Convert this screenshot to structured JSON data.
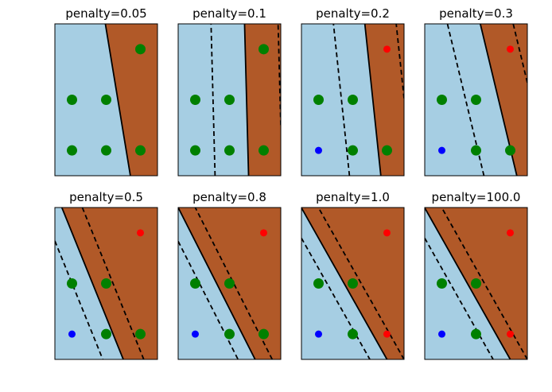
{
  "figure": {
    "background": "#ffffff"
  },
  "colors": {
    "class_0_region": "#a6cee3",
    "class_1_region": "#b15928",
    "boundary": "#000000",
    "support_vector": "#008000",
    "class_0_point": "#0000ff",
    "class_1_point": "#ff0000"
  },
  "chart_data": [
    {
      "type": "scatter",
      "title": "penalty=0.05",
      "xlim": [
        0,
        3
      ],
      "ylim": [
        0,
        3
      ],
      "grid": false,
      "ticks": false,
      "decision_boundary": {
        "normal": [
          0.41,
          0.1
        ],
        "offset": -0.905,
        "margin": 1.0
      },
      "points": [
        {
          "x": 0.5,
          "y": 0.5,
          "label": 0,
          "support_vector": true
        },
        {
          "x": 0.5,
          "y": 1.5,
          "label": 0,
          "support_vector": true
        },
        {
          "x": 1.5,
          "y": 0.5,
          "label": 0,
          "support_vector": true
        },
        {
          "x": 1.5,
          "y": 1.5,
          "label": 0,
          "support_vector": true
        },
        {
          "x": 2.5,
          "y": 0.5,
          "label": 1,
          "support_vector": true
        },
        {
          "x": 2.5,
          "y": 2.5,
          "label": 1,
          "support_vector": true
        }
      ]
    },
    {
      "type": "scatter",
      "title": "penalty=0.1",
      "xlim": [
        0,
        3
      ],
      "ylim": [
        0,
        3
      ],
      "grid": false,
      "ticks": false,
      "decision_boundary": {
        "normal": [
          1.02,
          0.04
        ],
        "offset": -2.1,
        "margin": 1.0
      },
      "points": [
        {
          "x": 0.5,
          "y": 0.5,
          "label": 0,
          "support_vector": true
        },
        {
          "x": 0.5,
          "y": 1.5,
          "label": 0,
          "support_vector": true
        },
        {
          "x": 1.5,
          "y": 0.5,
          "label": 0,
          "support_vector": true
        },
        {
          "x": 1.5,
          "y": 1.5,
          "label": 0,
          "support_vector": true
        },
        {
          "x": 2.5,
          "y": 0.5,
          "label": 1,
          "support_vector": true
        },
        {
          "x": 2.5,
          "y": 2.5,
          "label": 1,
          "support_vector": true
        }
      ]
    },
    {
      "type": "scatter",
      "title": "penalty=0.2",
      "xlim": [
        0,
        3
      ],
      "ylim": [
        0,
        3
      ],
      "grid": false,
      "ticks": false,
      "decision_boundary": {
        "normal": [
          1.09,
          0.17
        ],
        "offset": -2.53,
        "margin": 1.0
      },
      "points": [
        {
          "x": 0.5,
          "y": 0.5,
          "label": 0,
          "support_vector": false
        },
        {
          "x": 0.5,
          "y": 1.5,
          "label": 0,
          "support_vector": true
        },
        {
          "x": 1.5,
          "y": 0.5,
          "label": 0,
          "support_vector": true
        },
        {
          "x": 1.5,
          "y": 1.5,
          "label": 0,
          "support_vector": true
        },
        {
          "x": 2.5,
          "y": 0.5,
          "label": 1,
          "support_vector": true
        },
        {
          "x": 2.5,
          "y": 2.5,
          "label": 1,
          "support_vector": false
        }
      ]
    },
    {
      "type": "scatter",
      "title": "penalty=0.3",
      "xlim": [
        0,
        3
      ],
      "ylim": [
        0,
        3
      ],
      "grid": false,
      "ticks": false,
      "decision_boundary": {
        "normal": [
          1.04,
          0.37
        ],
        "offset": -2.8,
        "margin": 1.0
      },
      "points": [
        {
          "x": 0.5,
          "y": 0.5,
          "label": 0,
          "support_vector": false
        },
        {
          "x": 0.5,
          "y": 1.5,
          "label": 0,
          "support_vector": true
        },
        {
          "x": 1.5,
          "y": 0.5,
          "label": 0,
          "support_vector": true
        },
        {
          "x": 1.5,
          "y": 1.5,
          "label": 0,
          "support_vector": true
        },
        {
          "x": 2.5,
          "y": 0.5,
          "label": 1,
          "support_vector": true
        },
        {
          "x": 2.5,
          "y": 2.5,
          "label": 1,
          "support_vector": false
        }
      ]
    },
    {
      "type": "scatter",
      "title": "penalty=0.5",
      "xlim": [
        0,
        3
      ],
      "ylim": [
        0,
        3
      ],
      "grid": false,
      "ticks": false,
      "decision_boundary": {
        "normal": [
          1.67,
          1.0
        ],
        "offset": -3.34,
        "margin": 1.0
      },
      "points": [
        {
          "x": 0.5,
          "y": 0.5,
          "label": 0,
          "support_vector": false
        },
        {
          "x": 0.5,
          "y": 1.5,
          "label": 0,
          "support_vector": true
        },
        {
          "x": 1.5,
          "y": 0.5,
          "label": 0,
          "support_vector": true
        },
        {
          "x": 1.5,
          "y": 1.5,
          "label": 0,
          "support_vector": true
        },
        {
          "x": 2.5,
          "y": 0.5,
          "label": 1,
          "support_vector": true
        },
        {
          "x": 2.5,
          "y": 2.5,
          "label": 1,
          "support_vector": false
        }
      ]
    },
    {
      "type": "scatter",
      "title": "penalty=0.8",
      "xlim": [
        0,
        3
      ],
      "ylim": [
        0,
        3
      ],
      "grid": false,
      "ticks": false,
      "decision_boundary": {
        "normal": [
          2.0,
          1.5
        ],
        "offset": -4.5,
        "margin": 1.0
      },
      "points": [
        {
          "x": 0.5,
          "y": 0.5,
          "label": 0,
          "support_vector": false
        },
        {
          "x": 0.5,
          "y": 1.5,
          "label": 0,
          "support_vector": true
        },
        {
          "x": 1.5,
          "y": 0.5,
          "label": 0,
          "support_vector": true
        },
        {
          "x": 1.5,
          "y": 1.5,
          "label": 0,
          "support_vector": true
        },
        {
          "x": 2.5,
          "y": 0.5,
          "label": 1,
          "support_vector": true
        },
        {
          "x": 2.5,
          "y": 2.5,
          "label": 1,
          "support_vector": false
        }
      ]
    },
    {
      "type": "scatter",
      "title": "penalty=1.0",
      "xlim": [
        0,
        3
      ],
      "ylim": [
        0,
        3
      ],
      "grid": false,
      "ticks": false,
      "decision_boundary": {
        "normal": [
          2.0,
          1.67
        ],
        "offset": -5.0,
        "margin": 1.0
      },
      "points": [
        {
          "x": 0.5,
          "y": 0.5,
          "label": 0,
          "support_vector": false
        },
        {
          "x": 0.5,
          "y": 1.5,
          "label": 0,
          "support_vector": true
        },
        {
          "x": 1.5,
          "y": 0.5,
          "label": 0,
          "support_vector": true
        },
        {
          "x": 1.5,
          "y": 1.5,
          "label": 0,
          "support_vector": true
        },
        {
          "x": 2.5,
          "y": 0.5,
          "label": 1,
          "support_vector": false
        },
        {
          "x": 2.5,
          "y": 2.5,
          "label": 1,
          "support_vector": false
        }
      ]
    },
    {
      "type": "scatter",
      "title": "penalty=100.0",
      "xlim": [
        0,
        3
      ],
      "ylim": [
        0,
        3
      ],
      "grid": false,
      "ticks": false,
      "decision_boundary": {
        "normal": [
          2.0,
          1.67
        ],
        "offset": -5.0,
        "margin": 1.0
      },
      "points": [
        {
          "x": 0.5,
          "y": 0.5,
          "label": 0,
          "support_vector": false
        },
        {
          "x": 0.5,
          "y": 1.5,
          "label": 0,
          "support_vector": true
        },
        {
          "x": 1.5,
          "y": 0.5,
          "label": 0,
          "support_vector": true
        },
        {
          "x": 1.5,
          "y": 1.5,
          "label": 0,
          "support_vector": true
        },
        {
          "x": 2.5,
          "y": 0.5,
          "label": 1,
          "support_vector": false
        },
        {
          "x": 2.5,
          "y": 2.5,
          "label": 1,
          "support_vector": false
        }
      ]
    }
  ]
}
